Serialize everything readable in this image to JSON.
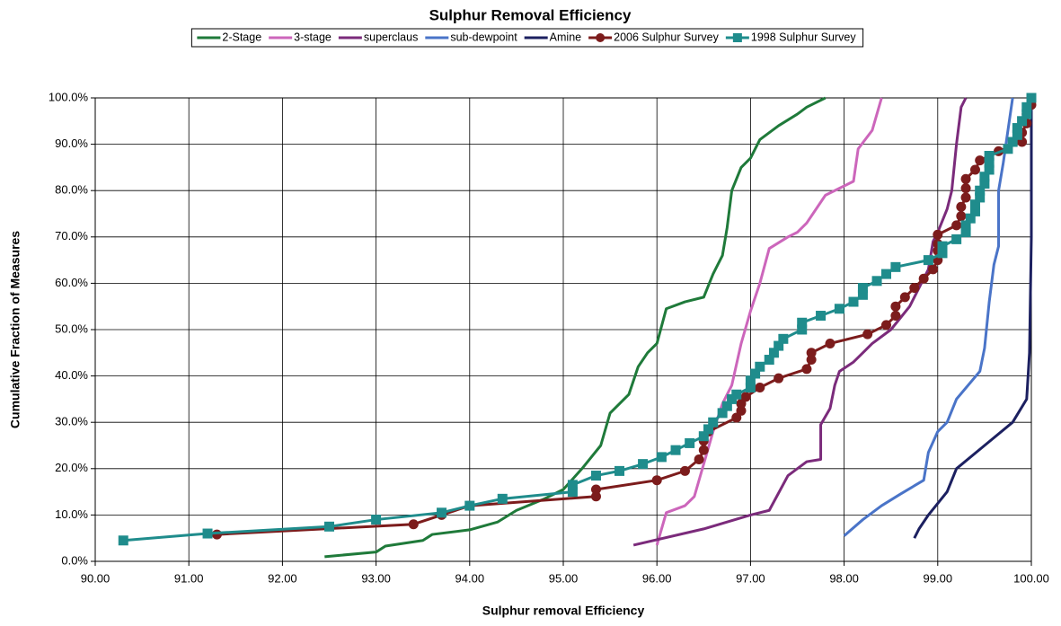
{
  "chart_data": {
    "type": "line",
    "title": "Sulphur Removal Efficiency",
    "x_label": "Sulphur removal Efficiency",
    "y_label": "Cumulative Fraction of Measures",
    "xlim": [
      90,
      100
    ],
    "ylim": [
      0,
      100
    ],
    "xticks": [
      {
        "value": 90,
        "label": "90.00"
      },
      {
        "value": 91,
        "label": "91.00"
      },
      {
        "value": 92,
        "label": "92.00"
      },
      {
        "value": 93,
        "label": "93.00"
      },
      {
        "value": 94,
        "label": "94.00"
      },
      {
        "value": 95,
        "label": "95.00"
      },
      {
        "value": 96,
        "label": "96.00"
      },
      {
        "value": 97,
        "label": "97.00"
      },
      {
        "value": 98,
        "label": "98.00"
      },
      {
        "value": 99,
        "label": "99.00"
      },
      {
        "value": 100,
        "label": "100.00"
      }
    ],
    "yticks": [
      {
        "value": 0,
        "label": "0.0%"
      },
      {
        "value": 10,
        "label": "10.0%"
      },
      {
        "value": 20,
        "label": "20.0%"
      },
      {
        "value": 30,
        "label": "30.0%"
      },
      {
        "value": 40,
        "label": "40.0%"
      },
      {
        "value": 50,
        "label": "50.0%"
      },
      {
        "value": 60,
        "label": "60.0%"
      },
      {
        "value": 70,
        "label": "70.0%"
      },
      {
        "value": 80,
        "label": "80.0%"
      },
      {
        "value": 90,
        "label": "90.0%"
      },
      {
        "value": 100,
        "label": "100.0%"
      }
    ],
    "grid": true,
    "legend": "top",
    "series": [
      {
        "name": "2-Stage",
        "color": "#1f7a3a",
        "marker": "none",
        "x": [
          92.45,
          93.0,
          93.1,
          93.5,
          93.6,
          94.0,
          94.3,
          94.5,
          94.8,
          95.0,
          95.2,
          95.4,
          95.5,
          95.7,
          95.8,
          95.9,
          96.0,
          96.1,
          96.3,
          96.5,
          96.6,
          96.7,
          96.75,
          96.8,
          96.9,
          97.0,
          97.1,
          97.3,
          97.5,
          97.6,
          97.8
        ],
        "values": [
          1,
          2,
          3.3,
          4.5,
          5.8,
          6.8,
          8.5,
          11,
          13.5,
          15.5,
          20,
          25,
          32,
          36,
          42,
          45,
          47,
          54.5,
          56,
          57,
          62,
          66,
          72,
          80,
          85,
          87,
          91,
          94,
          96.5,
          98,
          100
        ]
      },
      {
        "name": "3-stage",
        "color": "#cc66bb",
        "marker": "none",
        "x": [
          96.0,
          96.1,
          96.3,
          96.4,
          96.5,
          96.6,
          96.7,
          96.8,
          96.9,
          97.0,
          97.1,
          97.2,
          97.4,
          97.5,
          97.6,
          97.8,
          98.1,
          98.15,
          98.3,
          98.4
        ],
        "values": [
          3.5,
          10.5,
          12,
          14,
          21,
          28,
          34,
          38,
          47,
          54,
          60,
          67.5,
          70,
          71,
          73,
          79,
          82,
          89,
          93,
          100
        ]
      },
      {
        "name": "superclaus",
        "color": "#7b2b7b",
        "marker": "none",
        "x": [
          95.75,
          96.5,
          97.0,
          97.2,
          97.4,
          97.6,
          97.75,
          97.75,
          97.85,
          97.9,
          97.95,
          98.1,
          98.2,
          98.3,
          98.5,
          98.7,
          98.8,
          98.9,
          98.95,
          99.0,
          99.1,
          99.15,
          99.2,
          99.25,
          99.3
        ],
        "values": [
          3.5,
          7,
          10,
          11,
          18.5,
          21.5,
          22,
          29.5,
          33,
          38,
          41,
          43,
          45,
          47,
          50,
          55,
          59,
          63,
          69,
          71,
          76,
          80,
          90,
          98,
          100
        ]
      },
      {
        "name": "sub-dewpoint",
        "color": "#4a74c8",
        "marker": "none",
        "x": [
          98.0,
          98.2,
          98.4,
          98.6,
          98.85,
          98.9,
          99.0,
          99.1,
          99.2,
          99.45,
          99.5,
          99.55,
          99.6,
          99.65,
          99.65,
          99.7,
          99.75,
          99.8
        ],
        "values": [
          5.5,
          9,
          12,
          14.5,
          17.5,
          23.5,
          28,
          30,
          35,
          41,
          46,
          56,
          64,
          68,
          80,
          86,
          93,
          100
        ]
      },
      {
        "name": "Amine",
        "color": "#1c2060",
        "marker": "none",
        "x": [
          98.75,
          98.8,
          98.9,
          99.1,
          99.2,
          99.5,
          99.8,
          99.95,
          99.98,
          100.0,
          100.0
        ],
        "values": [
          5,
          7,
          10,
          15,
          20,
          25,
          30,
          35,
          45,
          70,
          100
        ]
      },
      {
        "name": "2006 Sulphur Survey",
        "color": "#7c1c1c",
        "marker": "circle",
        "x": [
          91.3,
          93.4,
          93.7,
          94.0,
          95.35,
          95.35,
          96.0,
          96.3,
          96.45,
          96.5,
          96.5,
          96.55,
          96.85,
          96.9,
          96.9,
          96.95,
          97.1,
          97.3,
          97.6,
          97.65,
          97.65,
          97.85,
          98.25,
          98.45,
          98.55,
          98.55,
          98.65,
          98.75,
          98.85,
          98.95,
          99.0,
          99.0,
          99.0,
          99.0,
          99.2,
          99.25,
          99.25,
          99.3,
          99.3,
          99.3,
          99.4,
          99.45,
          99.65,
          99.9,
          99.9,
          99.95,
          99.95,
          100.0,
          100.0
        ],
        "values": [
          5.8,
          8,
          10,
          12,
          14,
          15.5,
          17.5,
          19.5,
          22,
          24,
          26,
          28,
          31,
          32.5,
          34,
          35.5,
          37.5,
          39.5,
          41.5,
          43.5,
          45,
          47,
          49,
          51,
          53,
          55,
          57,
          59,
          61,
          63,
          65,
          67,
          68.5,
          70.5,
          72.5,
          74.5,
          76.5,
          78.5,
          80.5,
          82.5,
          84.5,
          86.5,
          88.5,
          90.5,
          92.5,
          94.5,
          96.5,
          98.5,
          100
        ]
      },
      {
        "name": "1998 Sulphur Survey",
        "color": "#1f8c8c",
        "marker": "square",
        "x": [
          90.3,
          91.2,
          92.5,
          93.0,
          93.7,
          94.0,
          94.35,
          95.1,
          95.1,
          95.35,
          95.6,
          95.85,
          96.05,
          96.2,
          96.35,
          96.5,
          96.55,
          96.6,
          96.7,
          96.75,
          96.8,
          96.85,
          97.0,
          97.0,
          97.05,
          97.1,
          97.2,
          97.25,
          97.3,
          97.35,
          97.55,
          97.55,
          97.75,
          97.95,
          98.1,
          98.2,
          98.2,
          98.35,
          98.45,
          98.55,
          98.9,
          99.05,
          99.05,
          99.2,
          99.3,
          99.3,
          99.35,
          99.4,
          99.4,
          99.45,
          99.45,
          99.5,
          99.5,
          99.55,
          99.55,
          99.55,
          99.75,
          99.8,
          99.85,
          99.85,
          99.9,
          99.95,
          99.95,
          100.0
        ],
        "values": [
          4.5,
          6,
          7.5,
          9,
          10.5,
          12,
          13.5,
          15,
          16.5,
          18.5,
          19.5,
          21,
          22.5,
          24,
          25.5,
          27,
          28.5,
          30,
          32,
          33.5,
          35,
          36,
          37.5,
          39,
          40.5,
          42,
          43.5,
          45,
          46.5,
          48,
          50,
          51.5,
          53,
          54.5,
          56,
          57.5,
          59,
          60.5,
          62,
          63.5,
          65,
          66.5,
          68,
          69.5,
          71,
          72.5,
          74,
          75.5,
          77,
          78.5,
          80,
          81.5,
          83,
          84.5,
          86,
          87.5,
          89,
          90.5,
          92,
          93.5,
          95,
          96.5,
          98,
          100
        ]
      }
    ]
  }
}
